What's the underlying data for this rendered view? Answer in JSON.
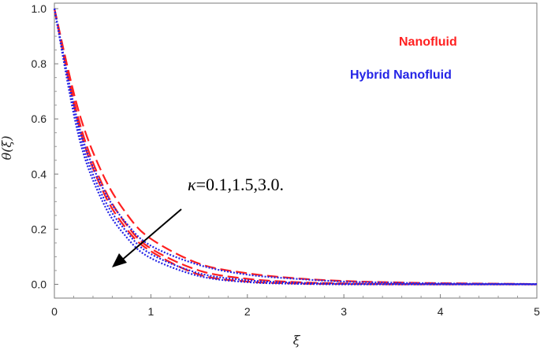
{
  "chart_data": {
    "type": "line",
    "xlabel": "ξ",
    "ylabel": "θ(ξ)",
    "xlim": [
      0,
      5
    ],
    "ylim": [
      -0.05,
      1.02
    ],
    "xticks": [
      "0",
      "1",
      "2",
      "3",
      "4",
      "5"
    ],
    "yticks": [
      "0.0",
      "0.2",
      "0.4",
      "0.6",
      "0.8",
      "1.0"
    ],
    "grid": false,
    "legend": [
      {
        "label": "Nanofluid",
        "color": "#ff2020"
      },
      {
        "label": "Hybrid Nanofluid",
        "color": "#2424e6"
      }
    ],
    "annotation": {
      "symbol": "κ",
      "text": "=0.1,1.5,3.0."
    },
    "series": [
      {
        "group": "Nanofluid",
        "style": "dashed",
        "color": "#ff2020",
        "x": [
          0,
          0.25,
          0.5,
          0.75,
          1,
          1.5,
          2,
          2.5,
          3,
          3.5,
          4,
          5
        ],
        "y": [
          1.0,
          0.63,
          0.4,
          0.255,
          0.165,
          0.075,
          0.04,
          0.022,
          0.012,
          0.007,
          0.004,
          0.001
        ]
      },
      {
        "group": "Nanofluid",
        "style": "dashed",
        "color": "#ff2020",
        "x": [
          0,
          0.25,
          0.5,
          0.75,
          1,
          1.5,
          2,
          2.5,
          3,
          3.5,
          4,
          5
        ],
        "y": [
          1.0,
          0.6,
          0.36,
          0.215,
          0.13,
          0.05,
          0.02,
          0.008,
          0.003,
          0.001,
          0.0005,
          0.0
        ]
      },
      {
        "group": "Nanofluid",
        "style": "dashed",
        "color": "#ff2020",
        "x": [
          0,
          0.25,
          0.5,
          0.75,
          1,
          1.5,
          2,
          2.5,
          3,
          3.5,
          4,
          5
        ],
        "y": [
          1.0,
          0.58,
          0.34,
          0.2,
          0.12,
          0.035,
          0.01,
          0.003,
          0.001,
          0.0,
          0.0,
          0.0
        ]
      },
      {
        "group": "Hybrid Nanofluid",
        "style": "dotted",
        "color": "#2424e6",
        "x": [
          0,
          0.25,
          0.5,
          0.75,
          1,
          1.5,
          2,
          2.5,
          3,
          3.5,
          4,
          5
        ],
        "y": [
          1.0,
          0.58,
          0.35,
          0.22,
          0.14,
          0.07,
          0.035,
          0.02,
          0.01,
          0.006,
          0.003,
          0.001
        ]
      },
      {
        "group": "Hybrid Nanofluid",
        "style": "dotted",
        "color": "#2424e6",
        "x": [
          0,
          0.25,
          0.5,
          0.75,
          1,
          1.5,
          2,
          2.5,
          3,
          3.5,
          4,
          5
        ],
        "y": [
          1.0,
          0.56,
          0.32,
          0.19,
          0.11,
          0.04,
          0.015,
          0.006,
          0.002,
          0.001,
          0.0,
          0.0
        ]
      },
      {
        "group": "Hybrid Nanofluid",
        "style": "dotted",
        "color": "#2424e6",
        "x": [
          0,
          0.25,
          0.5,
          0.75,
          1,
          1.5,
          2,
          2.5,
          3,
          3.5,
          4,
          5
        ],
        "y": [
          1.0,
          0.54,
          0.3,
          0.17,
          0.095,
          0.03,
          0.008,
          0.002,
          0.0,
          0.0,
          0.0,
          0.0
        ]
      }
    ]
  }
}
